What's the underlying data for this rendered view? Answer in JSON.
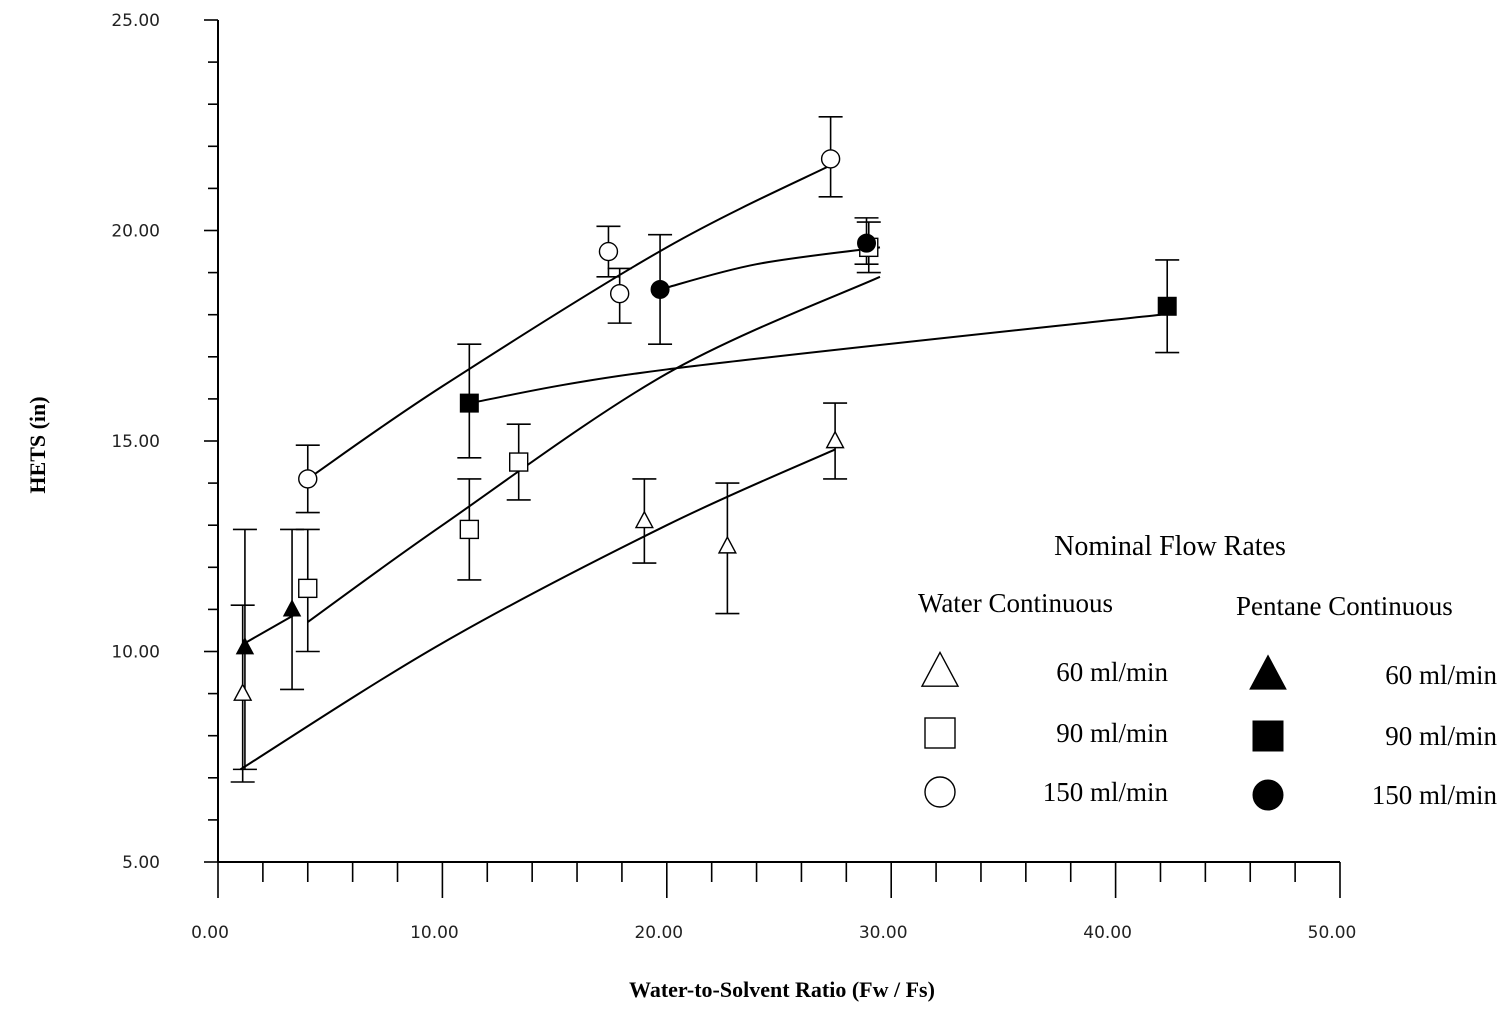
{
  "chart_data": {
    "type": "scatter",
    "title": "",
    "xlabel": "Water-to-Solvent Ratio (Fw / Fs)",
    "ylabel": "HETS (in)",
    "xlim": [
      0,
      50
    ],
    "ylim": [
      5,
      25
    ],
    "x_ticks": [
      "0.00",
      "10.00",
      "20.00",
      "30.00",
      "40.00",
      "50.00"
    ],
    "y_ticks": [
      "5.00",
      "10.00",
      "15.00",
      "20.00",
      "25.00"
    ],
    "legend": {
      "title": "Nominal Flow Rates",
      "group_water": "Water Continuous",
      "group_pentane": "Pentane Continuous",
      "entries": [
        {
          "marker": "open-triangle",
          "label": "60 ml/min"
        },
        {
          "marker": "open-square",
          "label": "90 ml/min"
        },
        {
          "marker": "open-circle",
          "label": "150 ml/min"
        },
        {
          "marker": "filled-triangle",
          "label": "60 ml/min"
        },
        {
          "marker": "filled-square",
          "label": "90 ml/min"
        },
        {
          "marker": "filled-circle",
          "label": "150 ml/min"
        }
      ]
    },
    "series": [
      {
        "marker": "open-triangle",
        "points": [
          {
            "x": 1.1,
            "y": 9.0,
            "lo": 6.9,
            "hi": 11.1
          },
          {
            "x": 19.0,
            "y": 13.1,
            "lo": 12.1,
            "hi": 14.1
          },
          {
            "x": 22.7,
            "y": 12.5,
            "lo": 10.9,
            "hi": 14.0
          },
          {
            "x": 27.5,
            "y": 15.0,
            "lo": 14.1,
            "hi": 15.9
          }
        ],
        "fit": [
          [
            1.0,
            7.2
          ],
          [
            10.0,
            10.2
          ],
          [
            20.0,
            13.0
          ],
          [
            27.5,
            14.8
          ]
        ]
      },
      {
        "marker": "open-square",
        "points": [
          {
            "x": 4.0,
            "y": 11.5,
            "lo": 10.0,
            "hi": 12.9
          },
          {
            "x": 11.2,
            "y": 12.9,
            "lo": 11.7,
            "hi": 14.1
          },
          {
            "x": 13.4,
            "y": 14.5,
            "lo": 13.6,
            "hi": 15.4
          },
          {
            "x": 29.0,
            "y": 19.6,
            "lo": 19.0,
            "hi": 20.2
          }
        ],
        "fit": [
          [
            4.0,
            10.7
          ],
          [
            10.0,
            13.0
          ],
          [
            20.0,
            16.6
          ],
          [
            29.5,
            18.9
          ]
        ]
      },
      {
        "marker": "open-circle",
        "points": [
          {
            "x": 4.0,
            "y": 14.1,
            "lo": 13.3,
            "hi": 14.9
          },
          {
            "x": 17.4,
            "y": 19.5,
            "lo": 18.9,
            "hi": 20.1
          },
          {
            "x": 17.9,
            "y": 18.5,
            "lo": 17.8,
            "hi": 19.1
          },
          {
            "x": 27.3,
            "y": 21.7,
            "lo": 20.8,
            "hi": 22.7
          }
        ],
        "fit": [
          [
            4.0,
            14.1
          ],
          [
            10.0,
            16.3
          ],
          [
            20.0,
            19.6
          ],
          [
            27.5,
            21.6
          ]
        ]
      },
      {
        "marker": "filled-triangle",
        "points": [
          {
            "x": 1.2,
            "y": 10.1,
            "lo": 7.2,
            "hi": 12.9
          },
          {
            "x": 3.3,
            "y": 11.0,
            "lo": 9.1,
            "hi": 12.9
          }
        ],
        "fit": [
          [
            1.2,
            10.2
          ],
          [
            3.5,
            10.9
          ]
        ]
      },
      {
        "marker": "filled-square",
        "points": [
          {
            "x": 11.2,
            "y": 15.9,
            "lo": 14.6,
            "hi": 17.3
          },
          {
            "x": 42.3,
            "y": 18.2,
            "lo": 17.1,
            "hi": 19.3
          }
        ],
        "fit": [
          [
            11.2,
            15.9
          ],
          [
            20.0,
            16.7
          ],
          [
            42.0,
            18.0
          ]
        ]
      },
      {
        "marker": "filled-circle",
        "points": [
          {
            "x": 19.7,
            "y": 18.6,
            "lo": 17.3,
            "hi": 19.9
          },
          {
            "x": 28.9,
            "y": 19.7,
            "lo": 19.2,
            "hi": 20.3
          }
        ],
        "fit": [
          [
            19.7,
            18.6
          ],
          [
            24.0,
            19.2
          ],
          [
            29.5,
            19.6
          ]
        ]
      }
    ]
  }
}
